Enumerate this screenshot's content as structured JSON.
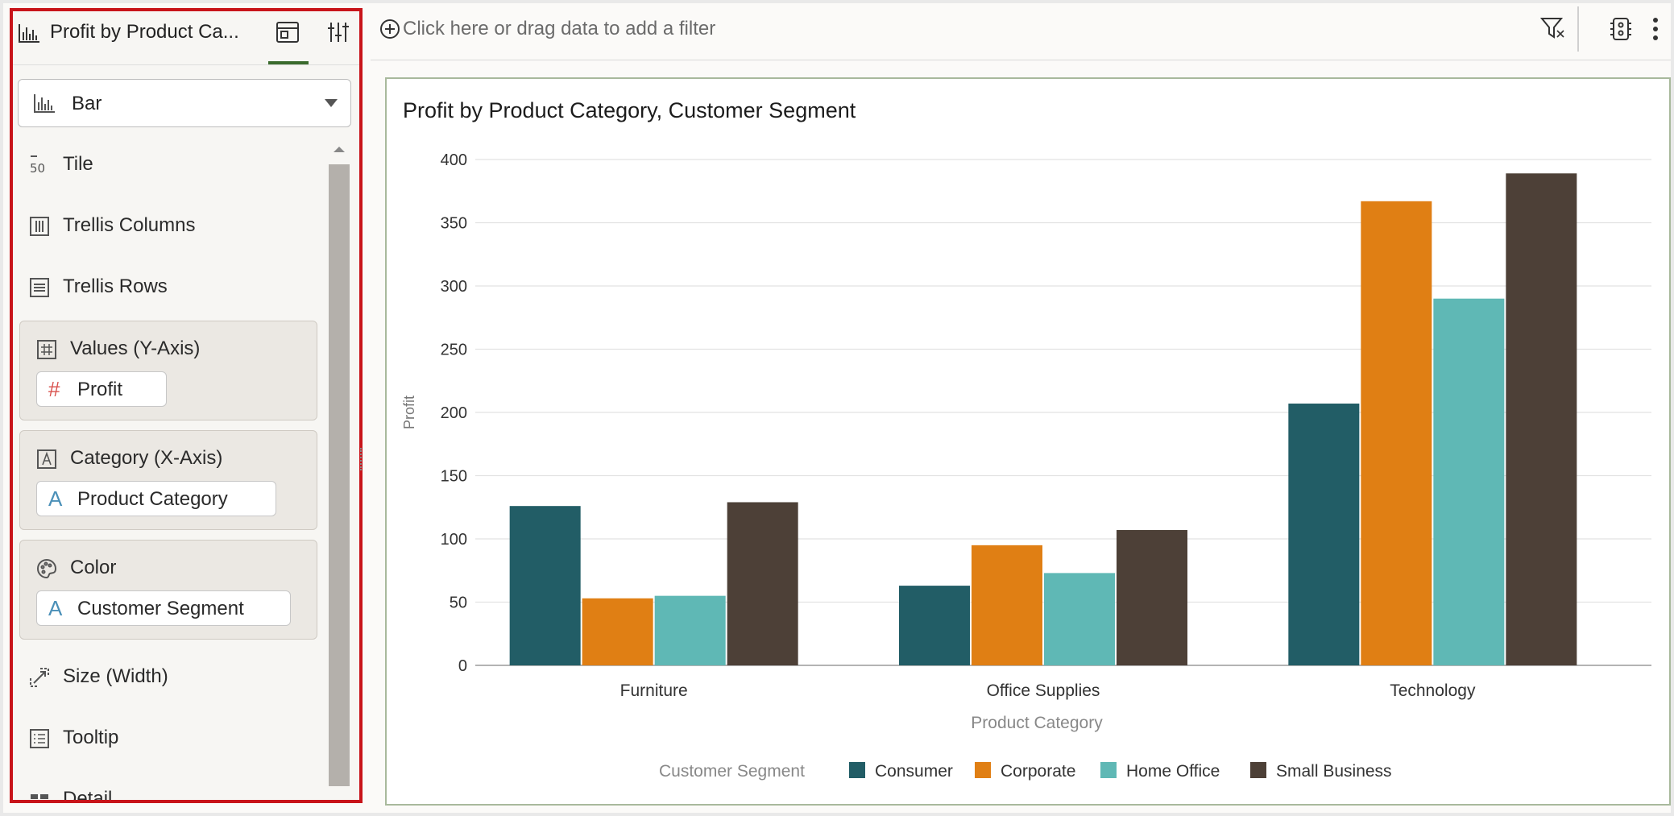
{
  "panel": {
    "title": "Profit by Product Ca...",
    "viz_type": "Bar",
    "wells": {
      "tile": "Tile",
      "trellis_columns": "Trellis Columns",
      "trellis_rows": "Trellis Rows",
      "values": {
        "label": "Values (Y-Axis)",
        "item": "Profit",
        "item_glyph": "#"
      },
      "category": {
        "label": "Category (X-Axis)",
        "item": "Product Category",
        "item_glyph": "A"
      },
      "color": {
        "label": "Color",
        "item": "Customer Segment",
        "item_glyph": "A"
      },
      "size": "Size (Width)",
      "tooltip": "Tooltip",
      "detail": "Detail"
    }
  },
  "filter_bar": {
    "placeholder": "Click here or drag data to add a filter"
  },
  "chart_data": {
    "type": "bar",
    "title": "Profit by Product Category, Customer Segment",
    "xlabel": "Product Category",
    "ylabel": "Profit",
    "ylim": [
      0,
      400
    ],
    "yticks": [
      0,
      50,
      100,
      150,
      200,
      250,
      300,
      350,
      400
    ],
    "categories": [
      "Furniture",
      "Office Supplies",
      "Technology"
    ],
    "legend_title": "Customer Segment",
    "legend_position": "bottom",
    "grid": true,
    "series": [
      {
        "name": "Consumer",
        "color": "#225d66",
        "values": [
          126,
          63,
          207
        ]
      },
      {
        "name": "Corporate",
        "color": "#e07f14",
        "values": [
          53,
          95,
          367
        ]
      },
      {
        "name": "Home Office",
        "color": "#5fb8b5",
        "values": [
          55,
          73,
          290
        ]
      },
      {
        "name": "Small Business",
        "color": "#4d4037",
        "values": [
          129,
          107,
          389
        ]
      }
    ]
  }
}
